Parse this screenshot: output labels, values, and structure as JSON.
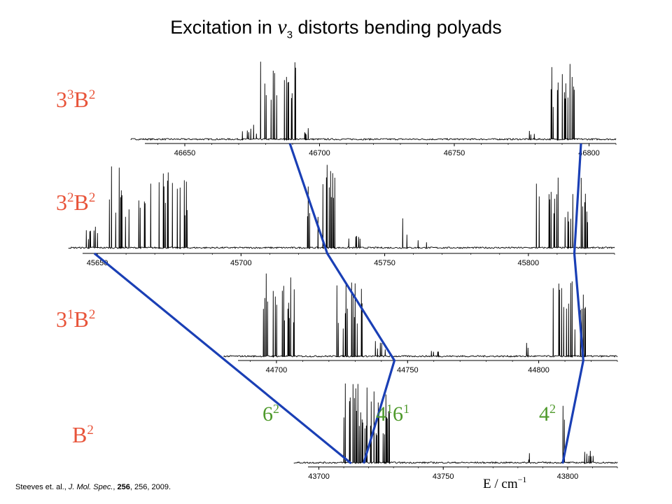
{
  "slide": {
    "title_pre": "Excitation in ",
    "title_nu": "ν",
    "title_sub": "3",
    "title_post": " distorts bending polyads"
  },
  "citation": {
    "authors": "Steeves et. al., ",
    "journal": "J. Mol. Spec.",
    "volume": "256",
    "rest": ",  256,  2009."
  },
  "colors": {
    "level_label": "#e8543a",
    "band_label": "#4f9a2c",
    "correlation_line": "#1a3fb5",
    "spectrum": "#000000"
  },
  "chart_data": [
    {
      "type": "line",
      "panel": "3^3 B^2",
      "label_base": "3",
      "label_sup1": "3",
      "label_mid": "B",
      "label_sup2": "2",
      "xlim": [
        46630,
        46810
      ],
      "ticks": [
        46650,
        46700,
        46750,
        46800
      ],
      "tick_labels": [
        "46650",
        "46700",
        "46750",
        "46800"
      ],
      "clusters": [
        {
          "center": 46685,
          "width": 14,
          "height": 1.0,
          "n": 20
        },
        {
          "center": 46674,
          "width": 6,
          "height": 0.2,
          "n": 6
        },
        {
          "center": 46695,
          "width": 4,
          "height": 0.15,
          "n": 4
        },
        {
          "center": 46790,
          "width": 10,
          "height": 1.0,
          "n": 14
        },
        {
          "center": 46778,
          "width": 3,
          "height": 0.15,
          "n": 3
        }
      ]
    },
    {
      "type": "line",
      "panel": "3^2 B^2",
      "label_base": "3",
      "label_sup1": "2",
      "label_mid": "B",
      "label_sup2": "2",
      "xlim": [
        45640,
        45830
      ],
      "ticks": [
        45650,
        45700,
        45750,
        45800
      ],
      "tick_labels": [
        "45650",
        "45700",
        "45750",
        "45800"
      ],
      "clusters": [
        {
          "center": 45668,
          "width": 28,
          "height": 1.0,
          "n": 30
        },
        {
          "center": 45650,
          "width": 8,
          "height": 0.3,
          "n": 8
        },
        {
          "center": 45728,
          "width": 10,
          "height": 1.0,
          "n": 14
        },
        {
          "center": 45740,
          "width": 6,
          "height": 0.2,
          "n": 5
        },
        {
          "center": 45757,
          "width": 2,
          "height": 0.45,
          "n": 2
        },
        {
          "center": 45763,
          "width": 3,
          "height": 0.15,
          "n": 3
        },
        {
          "center": 45812,
          "width": 20,
          "height": 0.85,
          "n": 22
        }
      ]
    },
    {
      "type": "line",
      "panel": "3^1 B^2",
      "label_base": "3",
      "label_sup1": "1",
      "label_mid": "B",
      "label_sup2": "2",
      "xlim": [
        44680,
        44830
      ],
      "ticks": [
        44700,
        44750,
        44800
      ],
      "tick_labels": [
        "44700",
        "44750",
        "44800"
      ],
      "clusters": [
        {
          "center": 44701,
          "width": 14,
          "height": 1.0,
          "n": 18
        },
        {
          "center": 44728,
          "width": 10,
          "height": 0.95,
          "n": 14
        },
        {
          "center": 44740,
          "width": 5,
          "height": 0.25,
          "n": 5
        },
        {
          "center": 44760,
          "width": 6,
          "height": 0.12,
          "n": 4
        },
        {
          "center": 44812,
          "width": 14,
          "height": 0.9,
          "n": 16
        },
        {
          "center": 44795,
          "width": 3,
          "height": 0.2,
          "n": 3
        }
      ]
    },
    {
      "type": "line",
      "panel": "B^2",
      "label_base": "",
      "label_sup1": "",
      "label_mid": "B",
      "label_sup2": "2",
      "xlim": [
        43690,
        43820
      ],
      "ticks": [
        43700,
        43750,
        43800
      ],
      "tick_labels": [
        "43700",
        "43750",
        "43800"
      ],
      "xlabel_base": "E / cm",
      "xlabel_sup": "−1",
      "clusters": [
        {
          "center": 43717,
          "width": 14,
          "height": 1.0,
          "n": 24
        },
        {
          "center": 43727,
          "width": 8,
          "height": 0.85,
          "n": 10
        },
        {
          "center": 43798,
          "width": 2,
          "height": 0.7,
          "n": 2
        },
        {
          "center": 43808,
          "width": 8,
          "height": 0.15,
          "n": 6
        },
        {
          "center": 43785,
          "width": 4,
          "height": 0.12,
          "n": 3
        }
      ],
      "band_labels": [
        {
          "base": "6",
          "sup": "2",
          "x": 43707
        },
        {
          "base": "4",
          "sup": "1",
          "base2": "6",
          "sup2": "1",
          "x": 43730
        },
        {
          "base": "4",
          "sup": "2",
          "x": 43797
        }
      ]
    }
  ],
  "correlation_lines": [
    {
      "name": "62",
      "points": [
        [
          46689,
          0
        ],
        [
          45730,
          1
        ],
        [
          44745,
          2
        ],
        [
          43718,
          3
        ]
      ]
    },
    {
      "name": "42",
      "points": [
        [
          46797,
          0
        ],
        [
          45816,
          1
        ],
        [
          44817,
          2
        ],
        [
          43798,
          3
        ]
      ]
    },
    {
      "name": "6-from-3-2",
      "points": [
        [
          45649,
          1
        ],
        [
          43713,
          3
        ]
      ]
    }
  ]
}
